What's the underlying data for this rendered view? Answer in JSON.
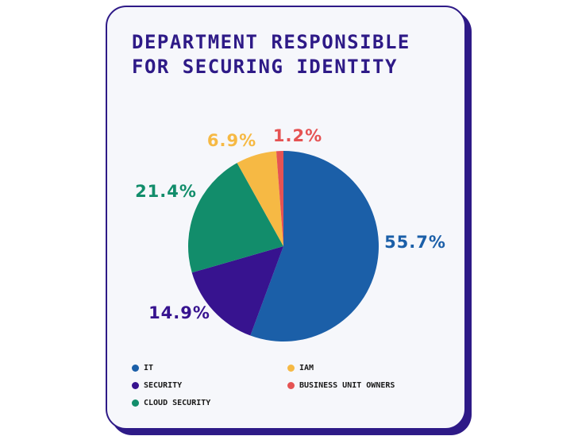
{
  "title": "Department Responsible for Securing Identity",
  "chart_data": {
    "type": "pie",
    "title": "Department Responsible for Securing Identity",
    "categories": [
      "IT",
      "SECURITY",
      "CLOUD SECURITY",
      "IAM",
      "BUSINESS UNIT OWNERS"
    ],
    "values": [
      55.7,
      14.9,
      21.4,
      6.9,
      1.2
    ],
    "labels": [
      "55.7%",
      "14.9%",
      "21.4%",
      "6.9%",
      "1.2%"
    ],
    "colors": [
      "#1b5fa8",
      "#37138f",
      "#128d6b",
      "#f6b944",
      "#e55353"
    ],
    "start_angle": "12 o'clock",
    "direction": "clockwise",
    "legend_position": "bottom"
  },
  "legend": [
    {
      "label": "IT",
      "color": "#1b5fa8"
    },
    {
      "label": "IAM",
      "color": "#f6b944"
    },
    {
      "label": "SECURITY",
      "color": "#37138f"
    },
    {
      "label": "BUSINESS UNIT OWNERS",
      "color": "#e55353"
    },
    {
      "label": "CLOUD SECURITY",
      "color": "#128d6b"
    }
  ]
}
